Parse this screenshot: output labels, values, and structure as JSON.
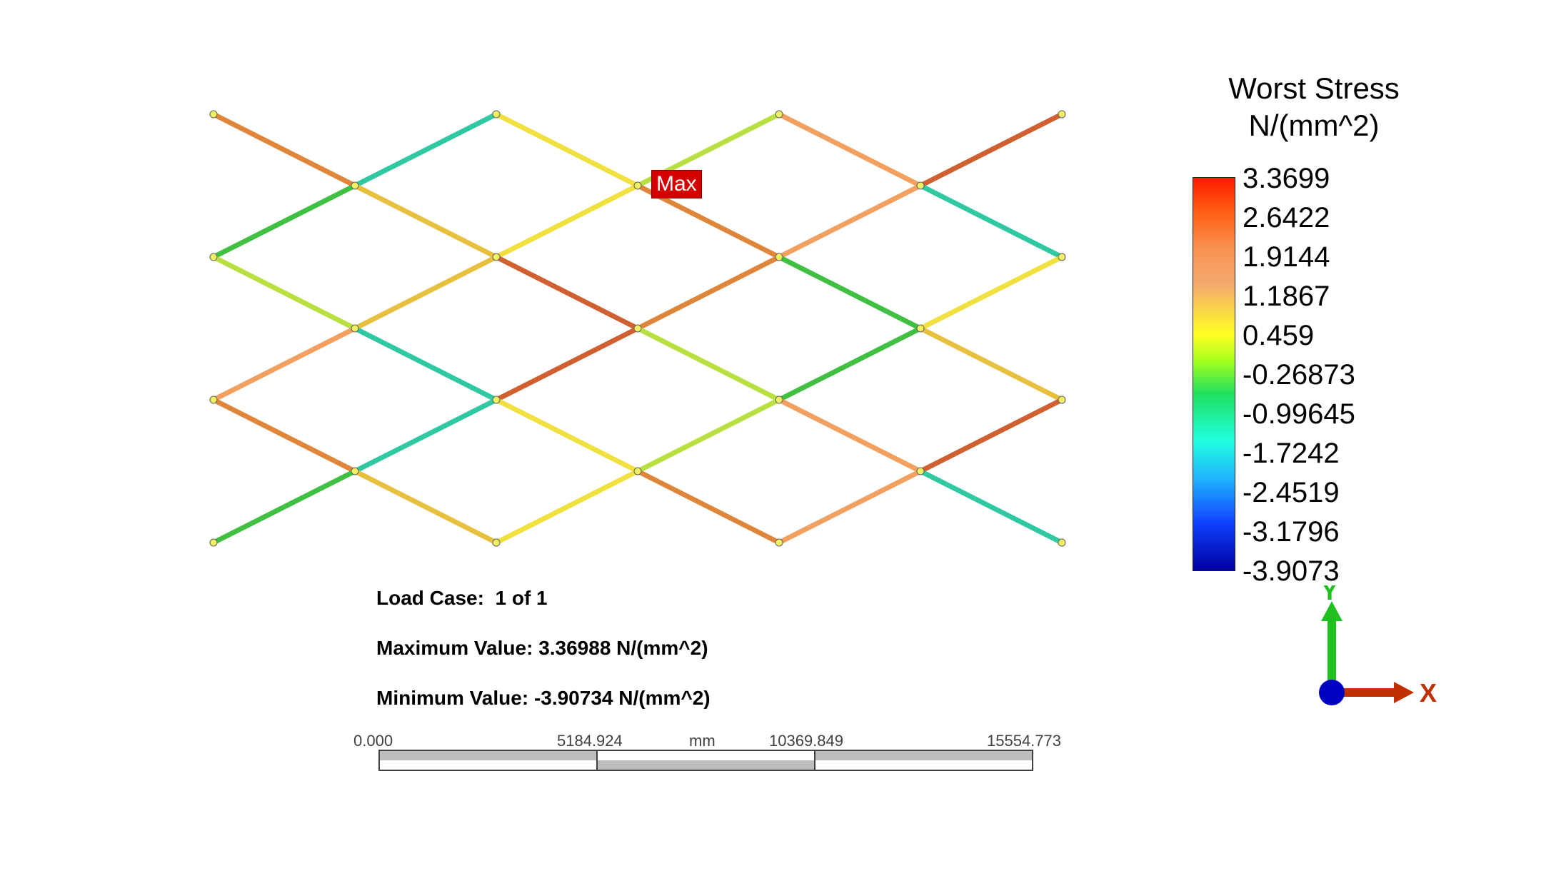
{
  "legend": {
    "title_line1": "Worst Stress",
    "title_line2": "N/(mm^2)",
    "values": [
      "3.3699",
      "2.6422",
      "1.9144",
      "1.1867",
      "0.459",
      "-0.26873",
      "-0.99645",
      "-1.7242",
      "-2.4519",
      "-3.1796",
      "-3.9073"
    ]
  },
  "info": {
    "load_case_label": "Load Case:",
    "load_case_value": "1 of 1",
    "max_label": "Maximum Value:",
    "max_value": "3.36988 N/(mm^2)",
    "min_label": "Minimum Value:",
    "min_value": "-3.90734 N/(mm^2)"
  },
  "max_marker": "Max",
  "scale_bar": {
    "ticks": [
      "0.000",
      "5184.924",
      "10369.849",
      "15554.773"
    ],
    "unit": "mm"
  },
  "triad": {
    "y_label": "Y",
    "x_label": "X"
  },
  "colors": {
    "max_tag": "#d40000",
    "y_axis": "#20c020",
    "x_axis": "#c03000",
    "origin": "#0000c0"
  }
}
